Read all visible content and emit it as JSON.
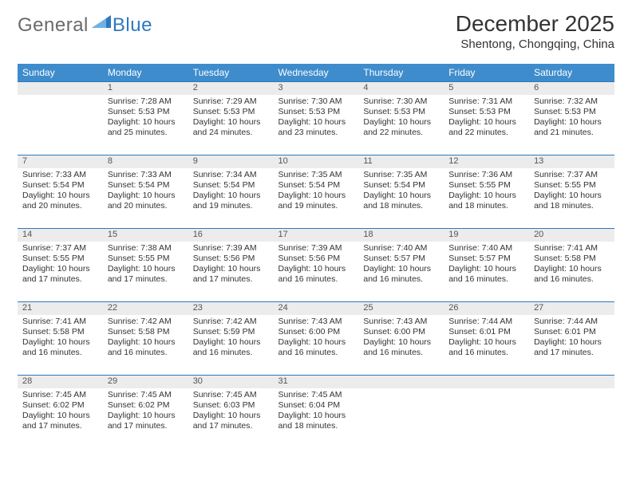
{
  "colors": {
    "header_bg": "#3e8ccc",
    "row_rule": "#2f78bf",
    "daynum_bg": "#ececec",
    "text": "#333333",
    "logo_gray": "#6a6a6a",
    "logo_blue": "#2f78bf"
  },
  "font": {
    "family": "Arial, Helvetica, sans-serif",
    "title_size": 28,
    "location_size": 15,
    "th_size": 12,
    "cell_size": 10.5
  },
  "logo": {
    "word1": "General",
    "word2": "Blue"
  },
  "title": "December 2025",
  "location": "Shentong, Chongqing, China",
  "weekdays": [
    "Sunday",
    "Monday",
    "Tuesday",
    "Wednesday",
    "Thursday",
    "Friday",
    "Saturday"
  ],
  "leading_blanks": 1,
  "days": [
    {
      "n": 1,
      "rise": "7:28 AM",
      "set": "5:53 PM",
      "dl": "10 hours and 25 minutes."
    },
    {
      "n": 2,
      "rise": "7:29 AM",
      "set": "5:53 PM",
      "dl": "10 hours and 24 minutes."
    },
    {
      "n": 3,
      "rise": "7:30 AM",
      "set": "5:53 PM",
      "dl": "10 hours and 23 minutes."
    },
    {
      "n": 4,
      "rise": "7:30 AM",
      "set": "5:53 PM",
      "dl": "10 hours and 22 minutes."
    },
    {
      "n": 5,
      "rise": "7:31 AM",
      "set": "5:53 PM",
      "dl": "10 hours and 22 minutes."
    },
    {
      "n": 6,
      "rise": "7:32 AM",
      "set": "5:53 PM",
      "dl": "10 hours and 21 minutes."
    },
    {
      "n": 7,
      "rise": "7:33 AM",
      "set": "5:54 PM",
      "dl": "10 hours and 20 minutes."
    },
    {
      "n": 8,
      "rise": "7:33 AM",
      "set": "5:54 PM",
      "dl": "10 hours and 20 minutes."
    },
    {
      "n": 9,
      "rise": "7:34 AM",
      "set": "5:54 PM",
      "dl": "10 hours and 19 minutes."
    },
    {
      "n": 10,
      "rise": "7:35 AM",
      "set": "5:54 PM",
      "dl": "10 hours and 19 minutes."
    },
    {
      "n": 11,
      "rise": "7:35 AM",
      "set": "5:54 PM",
      "dl": "10 hours and 18 minutes."
    },
    {
      "n": 12,
      "rise": "7:36 AM",
      "set": "5:55 PM",
      "dl": "10 hours and 18 minutes."
    },
    {
      "n": 13,
      "rise": "7:37 AM",
      "set": "5:55 PM",
      "dl": "10 hours and 18 minutes."
    },
    {
      "n": 14,
      "rise": "7:37 AM",
      "set": "5:55 PM",
      "dl": "10 hours and 17 minutes."
    },
    {
      "n": 15,
      "rise": "7:38 AM",
      "set": "5:55 PM",
      "dl": "10 hours and 17 minutes."
    },
    {
      "n": 16,
      "rise": "7:39 AM",
      "set": "5:56 PM",
      "dl": "10 hours and 17 minutes."
    },
    {
      "n": 17,
      "rise": "7:39 AM",
      "set": "5:56 PM",
      "dl": "10 hours and 16 minutes."
    },
    {
      "n": 18,
      "rise": "7:40 AM",
      "set": "5:57 PM",
      "dl": "10 hours and 16 minutes."
    },
    {
      "n": 19,
      "rise": "7:40 AM",
      "set": "5:57 PM",
      "dl": "10 hours and 16 minutes."
    },
    {
      "n": 20,
      "rise": "7:41 AM",
      "set": "5:58 PM",
      "dl": "10 hours and 16 minutes."
    },
    {
      "n": 21,
      "rise": "7:41 AM",
      "set": "5:58 PM",
      "dl": "10 hours and 16 minutes."
    },
    {
      "n": 22,
      "rise": "7:42 AM",
      "set": "5:58 PM",
      "dl": "10 hours and 16 minutes."
    },
    {
      "n": 23,
      "rise": "7:42 AM",
      "set": "5:59 PM",
      "dl": "10 hours and 16 minutes."
    },
    {
      "n": 24,
      "rise": "7:43 AM",
      "set": "6:00 PM",
      "dl": "10 hours and 16 minutes."
    },
    {
      "n": 25,
      "rise": "7:43 AM",
      "set": "6:00 PM",
      "dl": "10 hours and 16 minutes."
    },
    {
      "n": 26,
      "rise": "7:44 AM",
      "set": "6:01 PM",
      "dl": "10 hours and 16 minutes."
    },
    {
      "n": 27,
      "rise": "7:44 AM",
      "set": "6:01 PM",
      "dl": "10 hours and 17 minutes."
    },
    {
      "n": 28,
      "rise": "7:45 AM",
      "set": "6:02 PM",
      "dl": "10 hours and 17 minutes."
    },
    {
      "n": 29,
      "rise": "7:45 AM",
      "set": "6:02 PM",
      "dl": "10 hours and 17 minutes."
    },
    {
      "n": 30,
      "rise": "7:45 AM",
      "set": "6:03 PM",
      "dl": "10 hours and 17 minutes."
    },
    {
      "n": 31,
      "rise": "7:45 AM",
      "set": "6:04 PM",
      "dl": "10 hours and 18 minutes."
    }
  ],
  "labels": {
    "sunrise": "Sunrise:",
    "sunset": "Sunset:",
    "daylight": "Daylight:"
  }
}
